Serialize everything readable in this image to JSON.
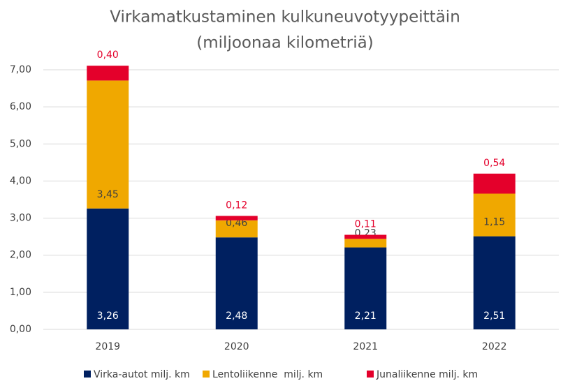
{
  "chart_data": {
    "type": "stacked_bar",
    "title": "Virkamatkustaminen kulkuneuvotyypeittäin",
    "subtitle": "(miljoonaa kilometriä)",
    "categories": [
      "2019",
      "2020",
      "2021",
      "2022"
    ],
    "series": [
      {
        "name": "Virka-autot milj. km",
        "color": "#002060",
        "label_color": "#ffffff",
        "values": [
          3.26,
          2.48,
          2.21,
          2.51
        ],
        "value_labels": [
          "3,26",
          "2,48",
          "2,21",
          "2,51"
        ]
      },
      {
        "name": "Lentoliikenne  milj. km",
        "color": "#f0a800",
        "label_color": "#404040",
        "values": [
          3.45,
          0.46,
          0.23,
          1.15
        ],
        "value_labels": [
          "3,45",
          "0,46",
          "0,23",
          "1,15"
        ]
      },
      {
        "name": "Junaliikenne milj. km",
        "color": "#e4002b",
        "label_color": "#e4002b",
        "values": [
          0.4,
          0.12,
          0.11,
          0.54
        ],
        "value_labels": [
          "0,40",
          "0,12",
          "0,11",
          "0,54"
        ]
      }
    ],
    "ylim": [
      0,
      7
    ],
    "yticks": [
      {
        "value": 0,
        "label": "0,00"
      },
      {
        "value": 1,
        "label": "1,00"
      },
      {
        "value": 2,
        "label": "2,00"
      },
      {
        "value": 3,
        "label": "3,00"
      },
      {
        "value": 4,
        "label": "4,00"
      },
      {
        "value": 5,
        "label": "5,00"
      },
      {
        "value": 6,
        "label": "6,00"
      },
      {
        "value": 7,
        "label": "7,00"
      }
    ],
    "grid": true,
    "legend": "bottom"
  }
}
